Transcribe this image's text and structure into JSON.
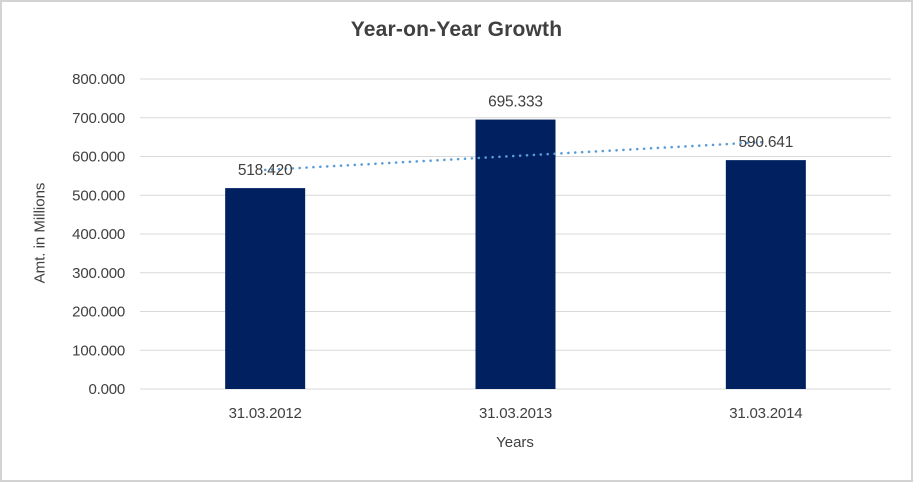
{
  "window": {
    "background": "#ffffff",
    "border_color": "#d3d3d3"
  },
  "chart_data": {
    "type": "bar",
    "title": "Year-on-Year Growth",
    "xlabel": "Years",
    "ylabel": "Amt. in Millions",
    "categories": [
      "31.03.2012",
      "31.03.2013",
      "31.03.2014"
    ],
    "values": [
      518.42,
      695.333,
      590.641
    ],
    "value_labels": [
      "518.420",
      "695.333",
      "590.641"
    ],
    "ylim": [
      0,
      800
    ],
    "ytick_step": 100,
    "ytick_labels": [
      "0.000",
      "100.000",
      "200.000",
      "300.000",
      "400.000",
      "500.000",
      "600.000",
      "700.000",
      "800.000"
    ],
    "grid": true,
    "legend": "none",
    "trendline": {
      "type": "linear",
      "style": "dotted"
    },
    "colors": {
      "bar": "#002060",
      "trendline": "#5B9BD5",
      "gridline": "#d9d9d9",
      "text": "#404040"
    }
  }
}
